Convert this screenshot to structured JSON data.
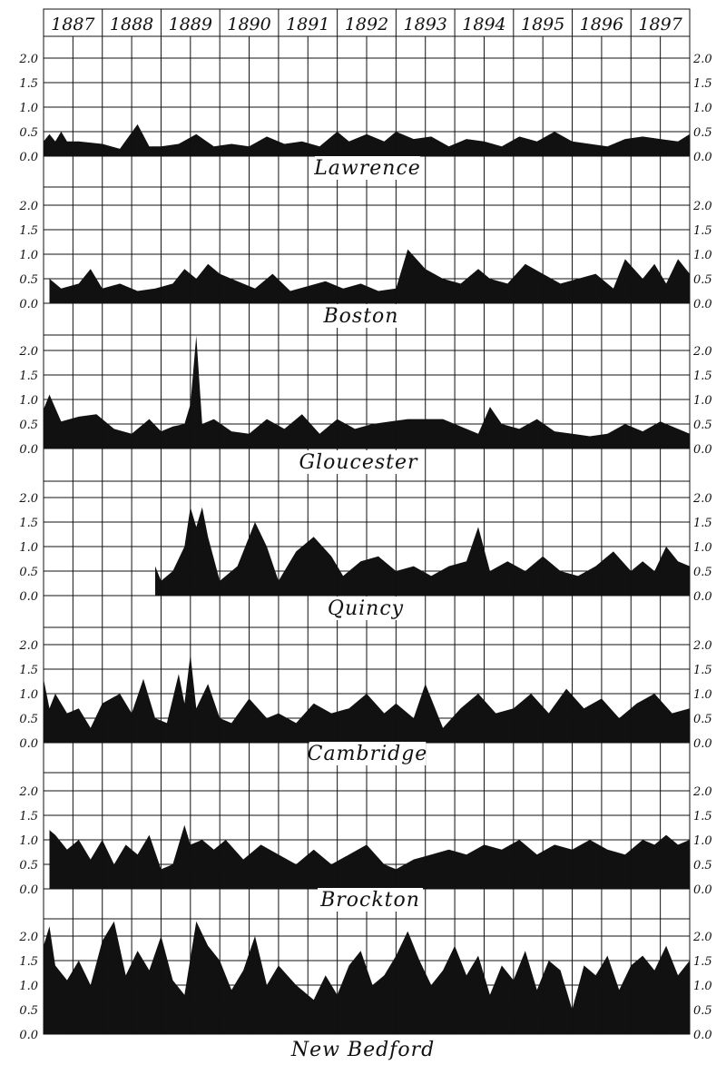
{
  "chart_data": {
    "type": "area",
    "years": [
      "1887",
      "1888",
      "1889",
      "1890",
      "1891",
      "1892",
      "1893",
      "1894",
      "1895",
      "1896",
      "1897"
    ],
    "y_ticks": [
      "0.0",
      "0.5",
      "1.0",
      "1.5",
      "2.0"
    ],
    "y_tick_values": [
      0,
      0.5,
      1.0,
      1.5,
      2.0
    ],
    "y_right_labels": [
      "0.0",
      "0.5",
      "1.0",
      "1.5",
      "2.0"
    ],
    "ylim": [
      0,
      2.3
    ],
    "xlim": [
      1887,
      1898
    ],
    "grid": true,
    "fill_color": "#111111",
    "series": [
      {
        "name": "Lawrence",
        "x": [
          1887.0,
          1887.1,
          1887.2,
          1887.3,
          1887.4,
          1887.6,
          1888.0,
          1888.3,
          1888.6,
          1888.8,
          1889.0,
          1889.3,
          1889.6,
          1889.9,
          1890.2,
          1890.5,
          1890.8,
          1891.1,
          1891.4,
          1891.7,
          1892.0,
          1892.2,
          1892.5,
          1892.8,
          1893.0,
          1893.3,
          1893.6,
          1893.9,
          1894.2,
          1894.5,
          1894.8,
          1895.1,
          1895.4,
          1895.7,
          1896.0,
          1896.3,
          1896.6,
          1896.9,
          1897.2,
          1897.5,
          1897.8,
          1898.0
        ],
        "values": [
          0.3,
          0.45,
          0.3,
          0.5,
          0.3,
          0.3,
          0.25,
          0.15,
          0.65,
          0.2,
          0.2,
          0.25,
          0.45,
          0.2,
          0.25,
          0.2,
          0.4,
          0.25,
          0.3,
          0.2,
          0.5,
          0.3,
          0.45,
          0.3,
          0.5,
          0.35,
          0.4,
          0.2,
          0.35,
          0.3,
          0.2,
          0.4,
          0.3,
          0.5,
          0.3,
          0.25,
          0.2,
          0.35,
          0.4,
          0.35,
          0.3,
          0.45
        ]
      },
      {
        "name": "Boston",
        "x": [
          1887.1,
          1887.3,
          1887.6,
          1887.8,
          1888.0,
          1888.3,
          1888.6,
          1888.9,
          1889.2,
          1889.4,
          1889.6,
          1889.8,
          1890.0,
          1890.3,
          1890.6,
          1890.9,
          1891.2,
          1891.5,
          1891.8,
          1892.1,
          1892.4,
          1892.7,
          1893.0,
          1893.2,
          1893.5,
          1893.8,
          1894.1,
          1894.4,
          1894.6,
          1894.9,
          1895.2,
          1895.5,
          1895.8,
          1896.1,
          1896.4,
          1896.7,
          1896.9,
          1897.2,
          1897.4,
          1897.6,
          1897.8,
          1898.0
        ],
        "values": [
          0.5,
          0.3,
          0.4,
          0.7,
          0.3,
          0.4,
          0.25,
          0.3,
          0.4,
          0.7,
          0.5,
          0.8,
          0.6,
          0.45,
          0.3,
          0.6,
          0.25,
          0.35,
          0.45,
          0.3,
          0.4,
          0.25,
          0.3,
          1.1,
          0.7,
          0.5,
          0.4,
          0.7,
          0.5,
          0.4,
          0.8,
          0.6,
          0.4,
          0.5,
          0.6,
          0.3,
          0.9,
          0.5,
          0.8,
          0.4,
          0.9,
          0.6
        ]
      },
      {
        "name": "Gloucester",
        "x": [
          1887.0,
          1887.1,
          1887.3,
          1887.6,
          1887.9,
          1888.2,
          1888.5,
          1888.8,
          1889.0,
          1889.2,
          1889.4,
          1889.5,
          1889.6,
          1889.7,
          1889.9,
          1890.2,
          1890.5,
          1890.8,
          1891.1,
          1891.4,
          1891.7,
          1892.0,
          1892.3,
          1892.6,
          1892.9,
          1893.2,
          1893.5,
          1893.8,
          1894.0,
          1894.2,
          1894.4,
          1894.6,
          1894.8,
          1895.1,
          1895.4,
          1895.7,
          1896.0,
          1896.3,
          1896.6,
          1896.9,
          1897.2,
          1897.5,
          1897.8,
          1898.0
        ],
        "values": [
          0.8,
          1.1,
          0.55,
          0.65,
          0.7,
          0.4,
          0.3,
          0.6,
          0.35,
          0.45,
          0.5,
          0.9,
          2.4,
          0.5,
          0.6,
          0.35,
          0.3,
          0.6,
          0.4,
          0.7,
          0.3,
          0.6,
          0.4,
          0.5,
          0.55,
          0.6,
          0.6,
          0.6,
          0.5,
          0.4,
          0.3,
          0.85,
          0.5,
          0.4,
          0.6,
          0.35,
          0.3,
          0.25,
          0.3,
          0.5,
          0.35,
          0.55,
          0.4,
          0.3
        ]
      },
      {
        "name": "Quincy",
        "x": [
          1888.9,
          1889.0,
          1889.2,
          1889.4,
          1889.5,
          1889.6,
          1889.7,
          1889.8,
          1890.0,
          1890.3,
          1890.6,
          1890.8,
          1891.0,
          1891.3,
          1891.6,
          1891.9,
          1892.1,
          1892.4,
          1892.7,
          1893.0,
          1893.3,
          1893.6,
          1893.9,
          1894.2,
          1894.4,
          1894.6,
          1894.9,
          1895.2,
          1895.5,
          1895.8,
          1896.1,
          1896.4,
          1896.7,
          1897.0,
          1897.2,
          1897.4,
          1897.6,
          1897.8,
          1898.0
        ],
        "values": [
          0.6,
          0.3,
          0.5,
          1.0,
          1.8,
          1.4,
          1.8,
          1.2,
          0.3,
          0.6,
          1.5,
          1.0,
          0.3,
          0.9,
          1.2,
          0.8,
          0.4,
          0.7,
          0.8,
          0.5,
          0.6,
          0.4,
          0.6,
          0.7,
          1.4,
          0.5,
          0.7,
          0.5,
          0.8,
          0.5,
          0.4,
          0.6,
          0.9,
          0.5,
          0.7,
          0.5,
          1.0,
          0.7,
          0.6
        ]
      },
      {
        "name": "Cambridge",
        "x": [
          1887.0,
          1887.1,
          1887.2,
          1887.4,
          1887.6,
          1887.8,
          1888.0,
          1888.3,
          1888.5,
          1888.7,
          1888.9,
          1889.1,
          1889.3,
          1889.4,
          1889.5,
          1889.6,
          1889.8,
          1890.0,
          1890.2,
          1890.5,
          1890.8,
          1891.0,
          1891.3,
          1891.6,
          1891.9,
          1892.2,
          1892.5,
          1892.8,
          1893.0,
          1893.3,
          1893.5,
          1893.8,
          1894.1,
          1894.4,
          1894.7,
          1895.0,
          1895.3,
          1895.6,
          1895.9,
          1896.2,
          1896.5,
          1896.8,
          1897.1,
          1897.4,
          1897.7,
          1898.0
        ],
        "values": [
          1.3,
          0.7,
          1.0,
          0.6,
          0.7,
          0.3,
          0.8,
          1.0,
          0.6,
          1.3,
          0.5,
          0.4,
          1.4,
          0.8,
          1.8,
          0.7,
          1.2,
          0.5,
          0.4,
          0.9,
          0.5,
          0.6,
          0.4,
          0.8,
          0.6,
          0.7,
          1.0,
          0.6,
          0.8,
          0.5,
          1.2,
          0.3,
          0.7,
          1.0,
          0.6,
          0.7,
          1.0,
          0.6,
          1.1,
          0.7,
          0.9,
          0.5,
          0.8,
          1.0,
          0.6,
          0.7
        ]
      },
      {
        "name": "Brockton",
        "x": [
          1887.1,
          1887.2,
          1887.4,
          1887.6,
          1887.8,
          1888.0,
          1888.2,
          1888.4,
          1888.6,
          1888.8,
          1889.0,
          1889.2,
          1889.4,
          1889.5,
          1889.7,
          1889.9,
          1890.1,
          1890.4,
          1890.7,
          1891.0,
          1891.3,
          1891.6,
          1891.9,
          1892.2,
          1892.5,
          1892.8,
          1893.0,
          1893.3,
          1893.6,
          1893.9,
          1894.2,
          1894.5,
          1894.8,
          1895.1,
          1895.4,
          1895.7,
          1896.0,
          1896.3,
          1896.6,
          1896.9,
          1897.2,
          1897.4,
          1897.6,
          1897.8,
          1898.0
        ],
        "values": [
          1.2,
          1.1,
          0.8,
          1.0,
          0.6,
          1.0,
          0.5,
          0.9,
          0.7,
          1.1,
          0.4,
          0.5,
          1.3,
          0.9,
          1.0,
          0.8,
          1.0,
          0.6,
          0.9,
          0.7,
          0.5,
          0.8,
          0.5,
          0.7,
          0.9,
          0.5,
          0.4,
          0.6,
          0.7,
          0.8,
          0.7,
          0.9,
          0.8,
          1.0,
          0.7,
          0.9,
          0.8,
          1.0,
          0.8,
          0.7,
          1.0,
          0.9,
          1.1,
          0.9,
          1.0
        ]
      },
      {
        "name": "New Bedford",
        "x": [
          1887.0,
          1887.1,
          1887.2,
          1887.4,
          1887.6,
          1887.8,
          1888.0,
          1888.2,
          1888.4,
          1888.6,
          1888.8,
          1889.0,
          1889.2,
          1889.4,
          1889.6,
          1889.8,
          1890.0,
          1890.2,
          1890.4,
          1890.6,
          1890.8,
          1891.0,
          1891.3,
          1891.6,
          1891.8,
          1892.0,
          1892.2,
          1892.4,
          1892.6,
          1892.8,
          1893.0,
          1893.2,
          1893.4,
          1893.6,
          1893.8,
          1894.0,
          1894.2,
          1894.4,
          1894.6,
          1894.8,
          1895.0,
          1895.2,
          1895.4,
          1895.6,
          1895.8,
          1896.0,
          1896.2,
          1896.4,
          1896.6,
          1896.8,
          1897.0,
          1897.2,
          1897.4,
          1897.6,
          1897.8,
          1898.0
        ],
        "values": [
          1.8,
          2.2,
          1.4,
          1.1,
          1.5,
          1.0,
          1.9,
          2.3,
          1.2,
          1.7,
          1.3,
          2.0,
          1.1,
          0.8,
          2.5,
          1.8,
          1.5,
          0.9,
          1.3,
          2.0,
          1.0,
          1.4,
          1.0,
          0.7,
          1.2,
          0.8,
          1.4,
          1.7,
          1.0,
          1.2,
          1.6,
          2.1,
          1.5,
          1.0,
          1.3,
          1.8,
          1.2,
          1.6,
          0.8,
          1.4,
          1.1,
          1.7,
          0.9,
          1.5,
          1.3,
          0.5,
          1.4,
          1.2,
          1.6,
          0.9,
          1.4,
          1.6,
          1.3,
          1.8,
          1.2,
          1.5
        ]
      }
    ]
  }
}
